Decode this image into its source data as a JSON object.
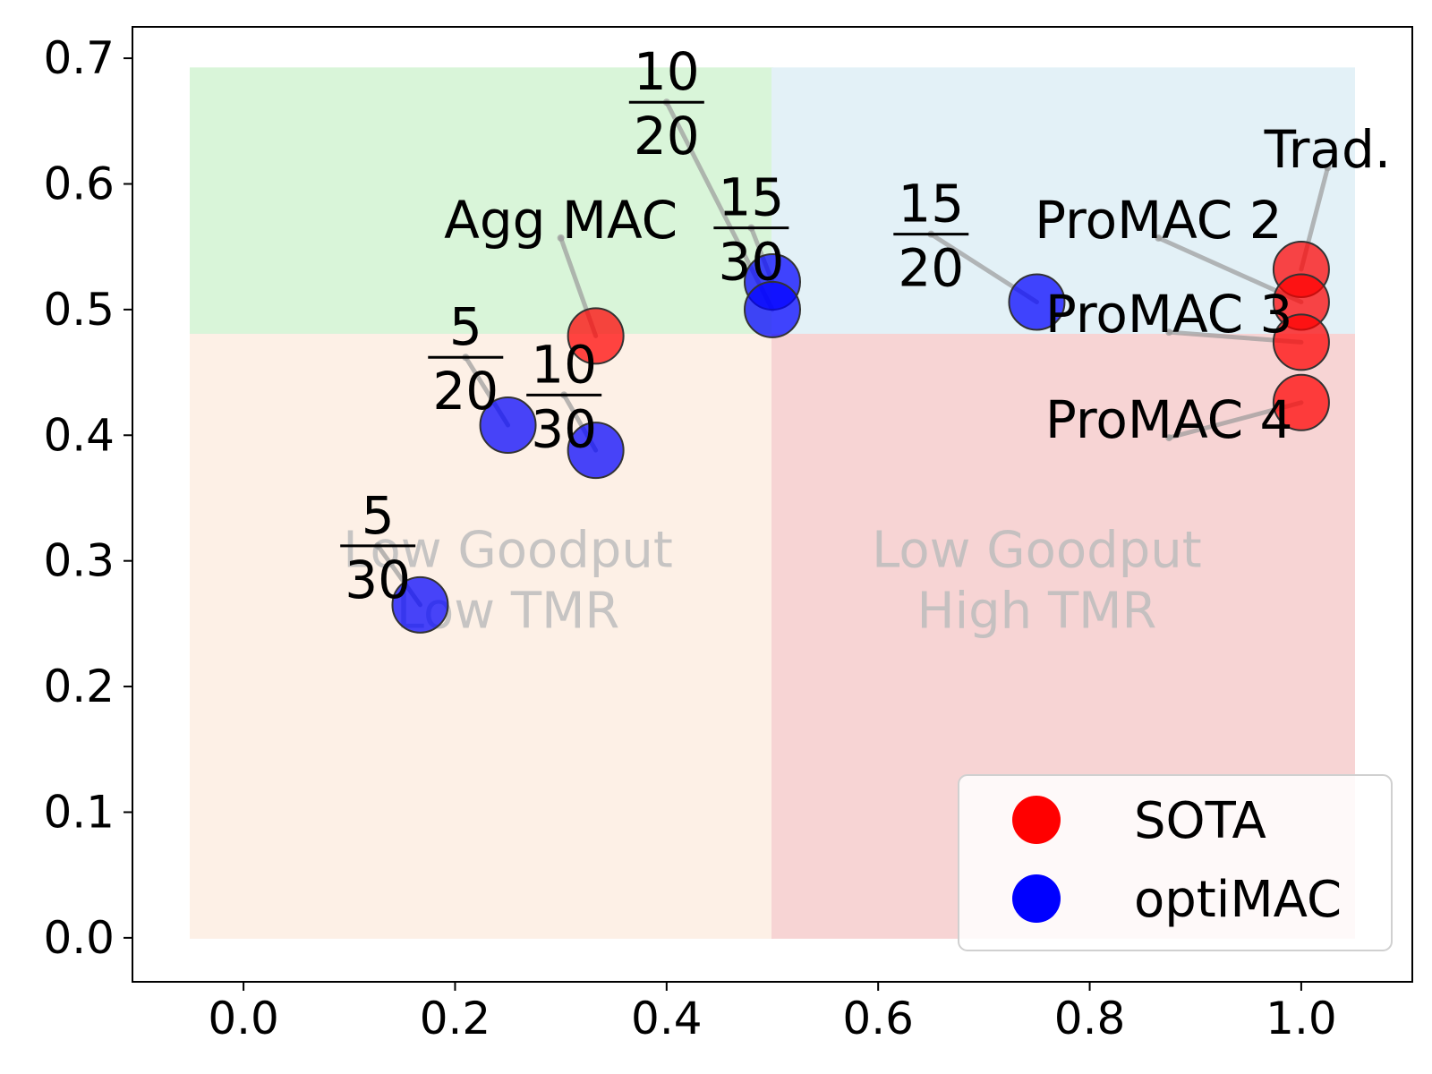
{
  "chart_data": {
    "type": "scatter",
    "xlim": [
      -0.105,
      1.105
    ],
    "ylim": [
      -0.035,
      0.725
    ],
    "xticks": [
      "0.0",
      "0.2",
      "0.4",
      "0.6",
      "0.8",
      "1.0"
    ],
    "xtick_values": [
      0.0,
      0.2,
      0.4,
      0.6,
      0.8,
      1.0
    ],
    "yticks": [
      "0.0",
      "0.1",
      "0.2",
      "0.3",
      "0.4",
      "0.5",
      "0.6",
      "0.7"
    ],
    "ytick_values": [
      0.0,
      0.1,
      0.2,
      0.3,
      0.4,
      0.5,
      0.6,
      0.7
    ],
    "grid": false,
    "legend_position": "bottom-right",
    "regions": [
      {
        "x": [
          -0.05,
          0.5
        ],
        "y": [
          0.48,
          0.692
        ],
        "color": "#d9f5d9"
      },
      {
        "x": [
          0.5,
          1.05
        ],
        "y": [
          0.48,
          0.692
        ],
        "color": "#e3f1f7"
      },
      {
        "x": [
          -0.05,
          0.5
        ],
        "y": [
          0.0,
          0.48
        ],
        "color": "#fdf0e6"
      },
      {
        "x": [
          0.5,
          1.05
        ],
        "y": [
          0.0,
          0.48
        ],
        "color": "#f7d4d4"
      }
    ],
    "region_labels": [
      {
        "lines": [
          "Low Goodput",
          "Low TMR"
        ],
        "x": 0.25,
        "y": 0.295
      },
      {
        "lines": [
          "Low Goodput",
          "High TMR"
        ],
        "x": 0.75,
        "y": 0.295
      }
    ],
    "series": [
      {
        "name": "SOTA",
        "color": "#ff0000",
        "points": [
          {
            "x": 0.333,
            "y": 0.479,
            "label": "Agg MAC",
            "lx": 0.3,
            "ly": 0.557
          },
          {
            "x": 1.0,
            "y": 0.532,
            "label": "Trad.",
            "lx": 1.025,
            "ly": 0.613
          },
          {
            "x": 1.0,
            "y": 0.506,
            "label": "ProMAC 2",
            "lx": 0.865,
            "ly": 0.557
          },
          {
            "x": 1.0,
            "y": 0.474,
            "label": "ProMAC 3",
            "lx": 0.875,
            "ly": 0.482
          },
          {
            "x": 1.0,
            "y": 0.426,
            "label": "ProMAC 4",
            "lx": 0.875,
            "ly": 0.398
          }
        ]
      },
      {
        "name": "optiMAC",
        "color": "#0000ff",
        "points": [
          {
            "x": 0.167,
            "y": 0.265,
            "num": "5",
            "den": "30",
            "lx": 0.127,
            "ly": 0.312
          },
          {
            "x": 0.25,
            "y": 0.408,
            "num": "5",
            "den": "20",
            "lx": 0.21,
            "ly": 0.462
          },
          {
            "x": 0.333,
            "y": 0.388,
            "num": "10",
            "den": "30",
            "lx": 0.303,
            "ly": 0.432
          },
          {
            "x": 0.5,
            "y": 0.522,
            "num": "15",
            "den": "30",
            "lx": 0.48,
            "ly": 0.565
          },
          {
            "x": 0.5,
            "y": 0.5,
            "num": "10",
            "den": "20",
            "lx": 0.4,
            "ly": 0.665
          },
          {
            "x": 0.75,
            "y": 0.506,
            "num": "15",
            "den": "20",
            "lx": 0.65,
            "ly": 0.56
          }
        ]
      }
    ]
  }
}
